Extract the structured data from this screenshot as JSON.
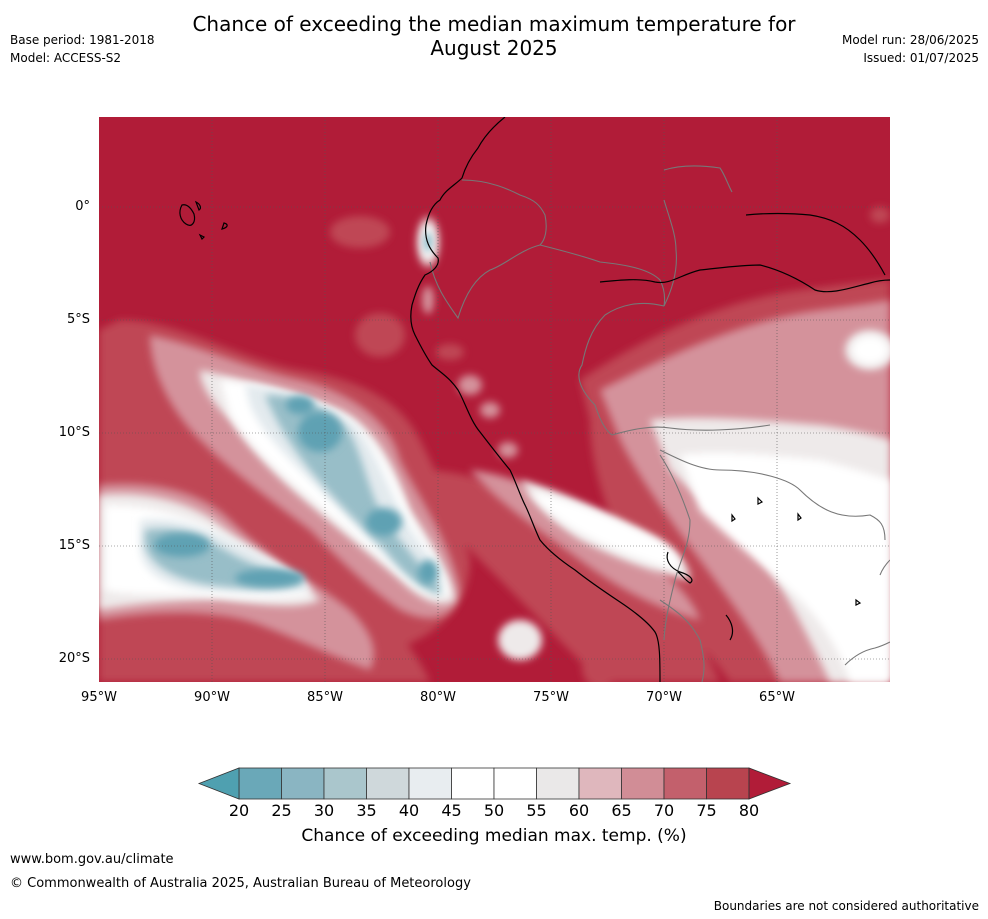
{
  "header": {
    "title_line1": "Chance of exceeding the median maximum temperature for",
    "title_line2": "August 2025",
    "base_period": "Base period: 1981-2018",
    "model": "Model: ACCESS-S2",
    "model_run": "Model run: 28/06/2025",
    "issued": "Issued: 01/07/2025"
  },
  "map": {
    "lat_labels": [
      "0°",
      "5°S",
      "10°S",
      "15°S",
      "20°S"
    ],
    "lon_labels": [
      "95°W",
      "90°W",
      "85°W",
      "80°W",
      "75°W",
      "70°W",
      "65°W"
    ],
    "lat_values": [
      0,
      -5,
      -10,
      -15,
      -20
    ],
    "lon_values": [
      -95,
      -90,
      -85,
      -80,
      -75,
      -70,
      -65
    ],
    "extent": {
      "lon_min": -95,
      "lon_max": -60,
      "lat_min": -21,
      "lat_max": 4
    },
    "background_color": "#b11c38"
  },
  "colorbar": {
    "ticks": [
      "20",
      "25",
      "30",
      "35",
      "40",
      "45",
      "50",
      "55",
      "60",
      "65",
      "70",
      "75",
      "80"
    ],
    "colors": [
      "#6aa8b8",
      "#8ab5c2",
      "#aac6cc",
      "#cfd8db",
      "#e8edf0",
      "#ffffff",
      "#ffffff",
      "#eae8e8",
      "#dfb7bd",
      "#d18d96",
      "#c3606c",
      "#b8444f"
    ],
    "below_color": "#4fa0b0",
    "above_color": "#b11c38",
    "label": "Chance of exceeding median max. temp. (%)"
  },
  "footer": {
    "url": "www.bom.gov.au/climate",
    "copyright": "© Commonwealth of Australia 2025, Australian Bureau of Meteorology",
    "disclaimer": "Boundaries are not considered authoritative"
  }
}
